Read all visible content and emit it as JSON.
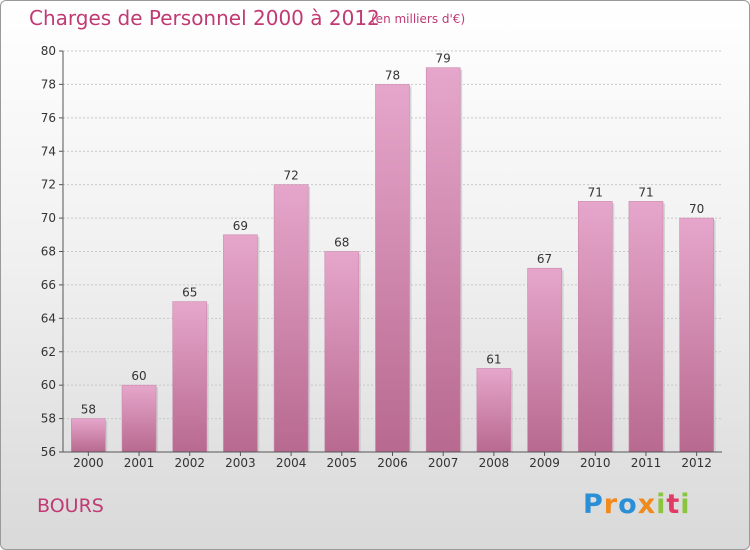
{
  "header": {
    "title": "Charges de Personnel 2000 à 2012",
    "subtitle": "(en milliers d'€)"
  },
  "footer": {
    "city": "BOURS",
    "logo_letters": [
      "P",
      "r",
      "o",
      "x",
      "i",
      "t",
      "i"
    ],
    "logo_colors": [
      "#2a8fd6",
      "#f08a1c",
      "#2a8fd6",
      "#f08a1c",
      "#8bc53f",
      "#e23a64",
      "#8bc53f"
    ]
  },
  "chart_data": {
    "type": "bar",
    "title": "Charges de Personnel 2000 à 2012",
    "subtitle": "(en milliers d'€)",
    "categories": [
      "2000",
      "2001",
      "2002",
      "2003",
      "2004",
      "2005",
      "2006",
      "2007",
      "2008",
      "2009",
      "2010",
      "2011",
      "2012"
    ],
    "values": [
      58,
      60,
      65,
      69,
      72,
      68,
      78,
      79,
      61,
      67,
      71,
      71,
      70
    ],
    "ylim": [
      56,
      80
    ],
    "yticks": [
      56,
      58,
      60,
      62,
      64,
      66,
      68,
      70,
      72,
      74,
      76,
      78,
      80
    ],
    "grid": true,
    "colors": {
      "bar": "#d98bb6",
      "bar_light": "#e6a6cb",
      "bar_dark": "#b8698f",
      "grid": "#c8c8c8",
      "axis": "#555555"
    }
  }
}
